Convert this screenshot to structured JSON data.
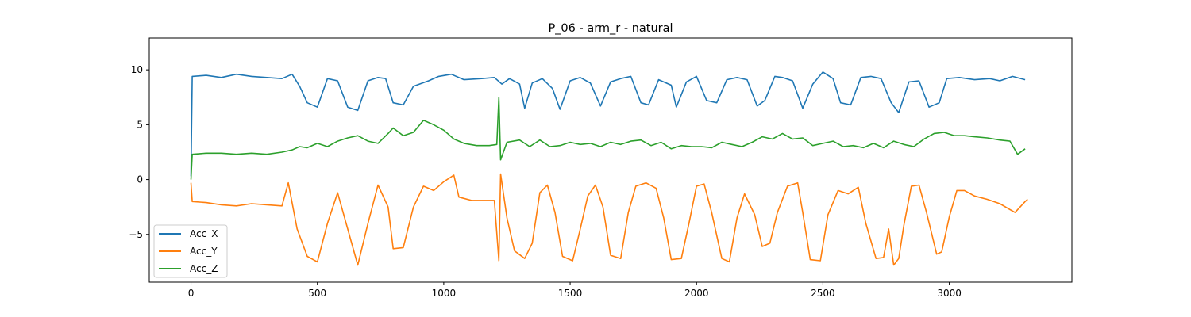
{
  "chart_data": {
    "type": "line",
    "title": "P_06 - arm_r - natural",
    "xlabel": "",
    "ylabel": "",
    "xlim": [
      -165,
      3485
    ],
    "ylim": [
      -9.35,
      12.9
    ],
    "xticks": [
      0,
      500,
      1000,
      1500,
      2000,
      2500,
      3000
    ],
    "yticks": [
      -5,
      0,
      5,
      10
    ],
    "ytick_labels": [
      "−5",
      "0",
      "5",
      "10"
    ],
    "grid": false,
    "legend_position": "lower-left",
    "series": [
      {
        "name": "Acc_X",
        "color": "#1f77b4",
        "points": [
          [
            0,
            0.3
          ],
          [
            5,
            9.4
          ],
          [
            60,
            9.5
          ],
          [
            120,
            9.3
          ],
          [
            180,
            9.6
          ],
          [
            240,
            9.4
          ],
          [
            300,
            9.3
          ],
          [
            360,
            9.2
          ],
          [
            400,
            9.6
          ],
          [
            430,
            8.5
          ],
          [
            460,
            7.0
          ],
          [
            500,
            6.6
          ],
          [
            540,
            9.2
          ],
          [
            580,
            9.0
          ],
          [
            620,
            6.6
          ],
          [
            660,
            6.3
          ],
          [
            700,
            9.0
          ],
          [
            740,
            9.3
          ],
          [
            770,
            9.2
          ],
          [
            800,
            7.0
          ],
          [
            840,
            6.8
          ],
          [
            880,
            8.5
          ],
          [
            940,
            9.0
          ],
          [
            980,
            9.4
          ],
          [
            1030,
            9.6
          ],
          [
            1080,
            9.1
          ],
          [
            1150,
            9.2
          ],
          [
            1200,
            9.3
          ],
          [
            1230,
            8.7
          ],
          [
            1260,
            9.2
          ],
          [
            1300,
            8.7
          ],
          [
            1320,
            6.5
          ],
          [
            1350,
            8.8
          ],
          [
            1390,
            9.2
          ],
          [
            1430,
            8.3
          ],
          [
            1460,
            6.4
          ],
          [
            1500,
            9.0
          ],
          [
            1540,
            9.3
          ],
          [
            1580,
            8.8
          ],
          [
            1620,
            6.7
          ],
          [
            1660,
            8.9
          ],
          [
            1700,
            9.2
          ],
          [
            1740,
            9.4
          ],
          [
            1780,
            7.0
          ],
          [
            1810,
            6.8
          ],
          [
            1850,
            9.1
          ],
          [
            1900,
            8.6
          ],
          [
            1920,
            6.6
          ],
          [
            1960,
            8.9
          ],
          [
            2000,
            9.4
          ],
          [
            2040,
            7.2
          ],
          [
            2080,
            7.0
          ],
          [
            2120,
            9.1
          ],
          [
            2160,
            9.3
          ],
          [
            2200,
            9.1
          ],
          [
            2240,
            6.7
          ],
          [
            2270,
            7.2
          ],
          [
            2310,
            9.4
          ],
          [
            2340,
            9.3
          ],
          [
            2380,
            9.0
          ],
          [
            2420,
            6.5
          ],
          [
            2460,
            8.7
          ],
          [
            2500,
            9.8
          ],
          [
            2540,
            9.2
          ],
          [
            2570,
            7.0
          ],
          [
            2610,
            6.8
          ],
          [
            2650,
            9.3
          ],
          [
            2690,
            9.4
          ],
          [
            2730,
            9.2
          ],
          [
            2770,
            7.0
          ],
          [
            2800,
            6.1
          ],
          [
            2840,
            8.9
          ],
          [
            2880,
            9.0
          ],
          [
            2920,
            6.6
          ],
          [
            2960,
            7.0
          ],
          [
            2990,
            9.2
          ],
          [
            3040,
            9.3
          ],
          [
            3100,
            9.1
          ],
          [
            3160,
            9.2
          ],
          [
            3200,
            9.0
          ],
          [
            3250,
            9.4
          ],
          [
            3300,
            9.1
          ]
        ]
      },
      {
        "name": "Acc_Y",
        "color": "#ff7f0e",
        "points": [
          [
            0,
            -0.3
          ],
          [
            5,
            -2.0
          ],
          [
            60,
            -2.1
          ],
          [
            120,
            -2.3
          ],
          [
            180,
            -2.4
          ],
          [
            240,
            -2.2
          ],
          [
            300,
            -2.3
          ],
          [
            360,
            -2.4
          ],
          [
            385,
            -0.3
          ],
          [
            420,
            -4.5
          ],
          [
            460,
            -7.0
          ],
          [
            500,
            -7.5
          ],
          [
            540,
            -4.0
          ],
          [
            580,
            -1.2
          ],
          [
            620,
            -4.5
          ],
          [
            660,
            -7.8
          ],
          [
            700,
            -4.0
          ],
          [
            740,
            -0.5
          ],
          [
            780,
            -2.5
          ],
          [
            800,
            -6.3
          ],
          [
            840,
            -6.2
          ],
          [
            880,
            -2.5
          ],
          [
            920,
            -0.6
          ],
          [
            960,
            -1.0
          ],
          [
            1000,
            -0.2
          ],
          [
            1040,
            0.4
          ],
          [
            1060,
            -1.6
          ],
          [
            1110,
            -1.9
          ],
          [
            1160,
            -1.9
          ],
          [
            1200,
            -1.9
          ],
          [
            1218,
            -7.4
          ],
          [
            1225,
            0.5
          ],
          [
            1250,
            -3.5
          ],
          [
            1280,
            -6.5
          ],
          [
            1320,
            -7.2
          ],
          [
            1350,
            -5.8
          ],
          [
            1380,
            -1.2
          ],
          [
            1410,
            -0.5
          ],
          [
            1440,
            -3.0
          ],
          [
            1470,
            -7.0
          ],
          [
            1510,
            -7.4
          ],
          [
            1540,
            -4.5
          ],
          [
            1570,
            -1.5
          ],
          [
            1600,
            -0.5
          ],
          [
            1630,
            -2.5
          ],
          [
            1660,
            -6.9
          ],
          [
            1700,
            -7.2
          ],
          [
            1730,
            -3.0
          ],
          [
            1760,
            -0.6
          ],
          [
            1800,
            -0.3
          ],
          [
            1840,
            -0.8
          ],
          [
            1870,
            -3.5
          ],
          [
            1900,
            -7.3
          ],
          [
            1940,
            -7.2
          ],
          [
            1970,
            -4.0
          ],
          [
            2000,
            -0.6
          ],
          [
            2030,
            -0.4
          ],
          [
            2060,
            -3.0
          ],
          [
            2100,
            -7.2
          ],
          [
            2130,
            -7.5
          ],
          [
            2160,
            -3.5
          ],
          [
            2190,
            -1.3
          ],
          [
            2230,
            -3.2
          ],
          [
            2260,
            -6.1
          ],
          [
            2290,
            -5.8
          ],
          [
            2320,
            -3.0
          ],
          [
            2360,
            -0.6
          ],
          [
            2400,
            -0.3
          ],
          [
            2420,
            -3.0
          ],
          [
            2450,
            -7.3
          ],
          [
            2490,
            -7.4
          ],
          [
            2520,
            -3.2
          ],
          [
            2560,
            -1.0
          ],
          [
            2600,
            -1.3
          ],
          [
            2640,
            -0.7
          ],
          [
            2670,
            -4.0
          ],
          [
            2710,
            -7.2
          ],
          [
            2740,
            -7.1
          ],
          [
            2760,
            -4.5
          ],
          [
            2780,
            -7.8
          ],
          [
            2800,
            -7.2
          ],
          [
            2820,
            -4.2
          ],
          [
            2850,
            -0.6
          ],
          [
            2880,
            -0.5
          ],
          [
            2910,
            -3.0
          ],
          [
            2950,
            -6.8
          ],
          [
            2970,
            -6.6
          ],
          [
            3000,
            -3.4
          ],
          [
            3030,
            -1.0
          ],
          [
            3060,
            -1.0
          ],
          [
            3100,
            -1.5
          ],
          [
            3150,
            -1.8
          ],
          [
            3200,
            -2.2
          ],
          [
            3230,
            -2.6
          ],
          [
            3260,
            -3.0
          ],
          [
            3300,
            -2.0
          ],
          [
            3310,
            -1.8
          ]
        ]
      },
      {
        "name": "Acc_Z",
        "color": "#2ca02c",
        "points": [
          [
            0,
            0.0
          ],
          [
            5,
            2.3
          ],
          [
            60,
            2.4
          ],
          [
            120,
            2.4
          ],
          [
            180,
            2.3
          ],
          [
            240,
            2.4
          ],
          [
            300,
            2.3
          ],
          [
            360,
            2.5
          ],
          [
            400,
            2.7
          ],
          [
            430,
            3.0
          ],
          [
            460,
            2.9
          ],
          [
            500,
            3.3
          ],
          [
            540,
            3.0
          ],
          [
            580,
            3.5
          ],
          [
            620,
            3.8
          ],
          [
            660,
            4.0
          ],
          [
            700,
            3.5
          ],
          [
            740,
            3.3
          ],
          [
            780,
            4.2
          ],
          [
            800,
            4.7
          ],
          [
            840,
            4.0
          ],
          [
            880,
            4.3
          ],
          [
            920,
            5.4
          ],
          [
            960,
            5.0
          ],
          [
            1000,
            4.5
          ],
          [
            1040,
            3.7
          ],
          [
            1080,
            3.3
          ],
          [
            1130,
            3.1
          ],
          [
            1180,
            3.1
          ],
          [
            1210,
            3.2
          ],
          [
            1218,
            7.5
          ],
          [
            1225,
            1.8
          ],
          [
            1250,
            3.4
          ],
          [
            1300,
            3.6
          ],
          [
            1340,
            3.0
          ],
          [
            1380,
            3.6
          ],
          [
            1420,
            3.0
          ],
          [
            1460,
            3.1
          ],
          [
            1500,
            3.4
          ],
          [
            1540,
            3.2
          ],
          [
            1580,
            3.3
          ],
          [
            1620,
            3.0
          ],
          [
            1660,
            3.4
          ],
          [
            1700,
            3.2
          ],
          [
            1740,
            3.5
          ],
          [
            1780,
            3.6
          ],
          [
            1820,
            3.1
          ],
          [
            1860,
            3.4
          ],
          [
            1900,
            2.8
          ],
          [
            1940,
            3.1
          ],
          [
            1980,
            3.0
          ],
          [
            2020,
            3.0
          ],
          [
            2060,
            2.9
          ],
          [
            2100,
            3.4
          ],
          [
            2140,
            3.2
          ],
          [
            2180,
            3.0
          ],
          [
            2220,
            3.4
          ],
          [
            2260,
            3.9
          ],
          [
            2300,
            3.7
          ],
          [
            2340,
            4.2
          ],
          [
            2380,
            3.7
          ],
          [
            2420,
            3.8
          ],
          [
            2460,
            3.1
          ],
          [
            2500,
            3.3
          ],
          [
            2540,
            3.5
          ],
          [
            2580,
            3.0
          ],
          [
            2620,
            3.1
          ],
          [
            2660,
            2.9
          ],
          [
            2700,
            3.3
          ],
          [
            2740,
            2.9
          ],
          [
            2780,
            3.5
          ],
          [
            2820,
            3.2
          ],
          [
            2860,
            3.0
          ],
          [
            2900,
            3.7
          ],
          [
            2940,
            4.2
          ],
          [
            2980,
            4.3
          ],
          [
            3020,
            4.0
          ],
          [
            3060,
            4.0
          ],
          [
            3100,
            3.9
          ],
          [
            3150,
            3.8
          ],
          [
            3200,
            3.6
          ],
          [
            3240,
            3.5
          ],
          [
            3270,
            2.3
          ],
          [
            3300,
            2.8
          ]
        ]
      }
    ]
  }
}
